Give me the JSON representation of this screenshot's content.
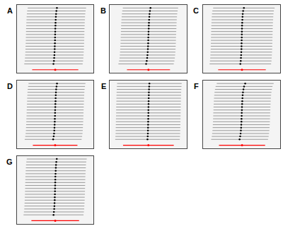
{
  "chart_data": [
    {
      "type": "scatter",
      "title": "A",
      "marker": "circle",
      "color": "#000000",
      "tick_labels": false,
      "grid": false,
      "xlim": [
        -0.5,
        0.5
      ],
      "error": 0.38,
      "values": [
        -0.021,
        -0.015,
        -0.012,
        -0.009,
        -0.007,
        -0.005,
        -0.004,
        -0.002,
        -0.001,
        0,
        0.001,
        0.002,
        0.003,
        0.005,
        0.006,
        0.008,
        0.01,
        0.013,
        0.017,
        0.024
      ],
      "overall": {
        "value": 0.002,
        "error": 0.3,
        "color": "#ff0000"
      }
    },
    {
      "type": "scatter",
      "title": "B",
      "marker": "circle",
      "color": "#000000",
      "tick_labels": false,
      "grid": false,
      "xlim": [
        -0.5,
        0.5
      ],
      "error": 0.36,
      "values": [
        -0.03,
        -0.022,
        -0.016,
        -0.012,
        -0.009,
        -0.007,
        -0.005,
        -0.003,
        -0.002,
        -0.001,
        0.001,
        0.002,
        0.004,
        0.005,
        0.007,
        0.009,
        0.012,
        0.015,
        0.02,
        0.027
      ],
      "overall": {
        "value": 0.001,
        "error": 0.28,
        "color": "#ff0000"
      }
    },
    {
      "type": "scatter",
      "title": "C",
      "marker": "circle",
      "color": "#000000",
      "tick_labels": false,
      "grid": false,
      "xlim": [
        -0.5,
        0.5
      ],
      "error": 0.4,
      "values": [
        -0.018,
        -0.013,
        -0.01,
        -0.008,
        -0.006,
        -0.004,
        -0.003,
        -0.002,
        -0.001,
        0,
        0.001,
        0.002,
        0.003,
        0.004,
        0.006,
        0.008,
        0.01,
        0.013,
        0.018,
        0.028
      ],
      "overall": {
        "value": 0.003,
        "error": 0.31,
        "color": "#ff0000"
      }
    },
    {
      "type": "scatter",
      "title": "D",
      "marker": "circle",
      "color": "#000000",
      "tick_labels": false,
      "grid": false,
      "xlim": [
        -0.5,
        0.5
      ],
      "error": 0.37,
      "values": [
        -0.025,
        -0.018,
        -0.013,
        -0.01,
        -0.008,
        -0.006,
        -0.004,
        -0.003,
        -0.001,
        0,
        0.001,
        0.003,
        0.004,
        0.006,
        0.007,
        0.009,
        0.011,
        0.014,
        0.019,
        0.025
      ],
      "overall": {
        "value": 0.001,
        "error": 0.29,
        "color": "#ff0000"
      }
    },
    {
      "type": "scatter",
      "title": "E",
      "marker": "circle",
      "color": "#000000",
      "tick_labels": false,
      "grid": false,
      "xlim": [
        -0.5,
        0.5
      ],
      "error": 0.42,
      "values": [
        -0.012,
        -0.009,
        -0.007,
        -0.006,
        -0.005,
        -0.004,
        -0.003,
        -0.002,
        -0.001,
        0,
        0,
        0.001,
        0.002,
        0.003,
        0.004,
        0.005,
        0.006,
        0.008,
        0.01,
        0.013
      ],
      "overall": {
        "value": 0.0,
        "error": 0.33,
        "color": "#ff0000"
      }
    },
    {
      "type": "scatter",
      "title": "F",
      "marker": "circle",
      "color": "#000000",
      "tick_labels": false,
      "grid": false,
      "xlim": [
        -0.5,
        0.5
      ],
      "error": 0.37,
      "values": [
        -0.028,
        -0.02,
        -0.015,
        -0.011,
        -0.008,
        -0.006,
        -0.004,
        -0.003,
        -0.001,
        0,
        0.002,
        0.003,
        0.005,
        0.007,
        0.009,
        0.012,
        0.016,
        0.022,
        0.03,
        0.045
      ],
      "overall": {
        "value": 0.004,
        "error": 0.3,
        "color": "#ff0000"
      }
    },
    {
      "type": "scatter",
      "title": "G",
      "marker": "circle",
      "color": "#000000",
      "tick_labels": false,
      "grid": false,
      "xlim": [
        -0.5,
        0.5
      ],
      "error": 0.39,
      "values": [
        -0.02,
        -0.015,
        -0.011,
        -0.009,
        -0.007,
        -0.005,
        -0.004,
        -0.002,
        -0.001,
        0,
        0.001,
        0.002,
        0.003,
        0.004,
        0.006,
        0.008,
        0.01,
        0.012,
        0.016,
        0.022
      ],
      "overall": {
        "value": 0.002,
        "error": 0.31,
        "color": "#ff0000"
      }
    }
  ]
}
